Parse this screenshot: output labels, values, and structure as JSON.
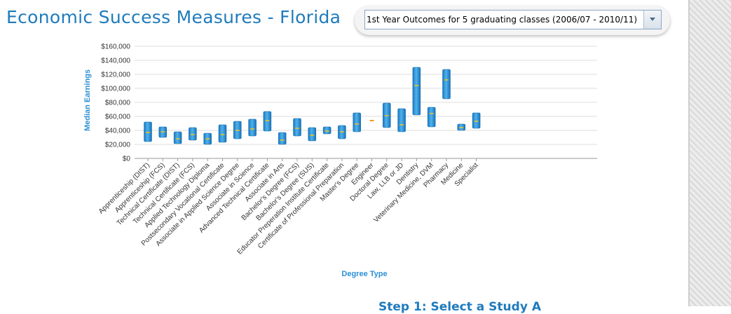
{
  "header": {
    "title": "Economic Success Measures - Florida",
    "dropdown_selected": "1st Year Outcomes for 5 graduating classes (2006/07 - 2010/11)"
  },
  "below_heading": "Step 1: Select a Study A",
  "colors": {
    "title": "#1f7bbd",
    "bar": "#2a8fd6",
    "median_tick": "#f5c518",
    "engineer_marker": "#f29b1d",
    "axis_label": "#2a8fd6"
  },
  "chart_data": {
    "type": "range-bar",
    "xlabel": "Degree Type",
    "ylabel": "Median Earnings",
    "ylim": [
      0,
      160000
    ],
    "yticks": [
      "$0",
      "$20,000",
      "$40,000",
      "$60,000",
      "$80,000",
      "$100,000",
      "$120,000",
      "$140,000",
      "$160,000"
    ],
    "grid": true,
    "categories": [
      "Apprenticeship (DIST)",
      "Apprenticeship (FCS)",
      "Technical Certificate (DIST)",
      "Technical Certificate (FCS)",
      "Applied Technology Diploma",
      "Postsecondary Vocational Certificate",
      "Associate in Applied Science Degree",
      "Associate in Science",
      "Advanced Technical Certificate",
      "Associate in Arts",
      "Bachelor's Degree (FCS)",
      "Bachelor's Degree (SUS)",
      "Educator Preperation Institute Certificate",
      "Certificate of Professional Preparation",
      "Master's Degree",
      "Engineer",
      "Doctoral Degree",
      "Law, LLB or JD",
      "Dentistry",
      "Veterinary Medicine, DVM",
      "Pharmacy",
      "Medicine",
      "Specialist"
    ],
    "low": [
      24000,
      30000,
      21000,
      26000,
      20000,
      23000,
      28000,
      32000,
      39000,
      20000,
      32000,
      25000,
      35000,
      28000,
      38000,
      null,
      44000,
      38000,
      62000,
      45000,
      85000,
      40000,
      43000
    ],
    "high": [
      52000,
      45000,
      38000,
      44000,
      36000,
      48000,
      53000,
      56000,
      67000,
      37000,
      57000,
      44000,
      45000,
      47000,
      65000,
      null,
      79000,
      71000,
      130000,
      73000,
      127000,
      49000,
      65000
    ],
    "median": [
      37000,
      38000,
      28000,
      34000,
      28000,
      34000,
      40000,
      42000,
      54000,
      26000,
      43000,
      33000,
      39000,
      38000,
      49000,
      54000,
      61000,
      48000,
      104000,
      64000,
      112000,
      44000,
      53000
    ]
  }
}
